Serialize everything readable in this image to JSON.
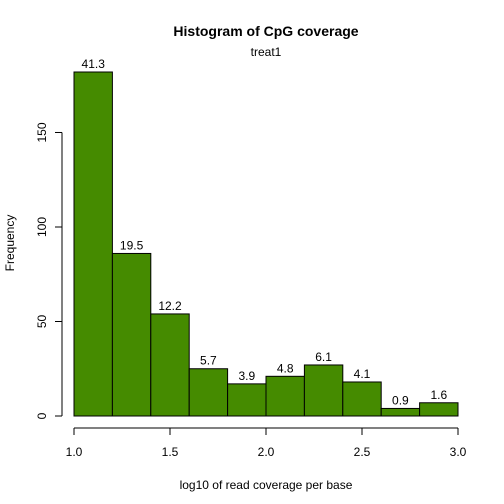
{
  "chart_data": {
    "type": "bar",
    "title": "Histogram of CpG coverage",
    "subtitle": "treat1",
    "xlabel": "log10 of read coverage per base",
    "ylabel": "Frequency",
    "bin_edges": [
      1.0,
      1.2,
      1.4,
      1.6,
      1.8,
      2.0,
      2.2,
      2.4,
      2.6,
      2.8,
      3.0
    ],
    "counts": [
      182,
      86,
      54,
      25,
      17,
      21,
      27,
      18,
      4,
      7
    ],
    "bar_labels": [
      "41.3",
      "19.5",
      "12.2",
      "5.7",
      "3.9",
      "4.8",
      "6.1",
      "4.1",
      "0.9",
      "1.6"
    ],
    "xlim": [
      1.0,
      3.0
    ],
    "ylim": [
      0,
      182
    ],
    "x_ticks": [
      1.0,
      1.5,
      2.0,
      2.5,
      3.0
    ],
    "x_tick_labels": [
      "1.0",
      "1.5",
      "2.0",
      "2.5",
      "3.0"
    ],
    "y_ticks": [
      0,
      50,
      100,
      150
    ],
    "y_tick_labels": [
      "0",
      "50",
      "100",
      "150"
    ],
    "bar_color": "#458b00",
    "grid": false,
    "legend": "none"
  }
}
